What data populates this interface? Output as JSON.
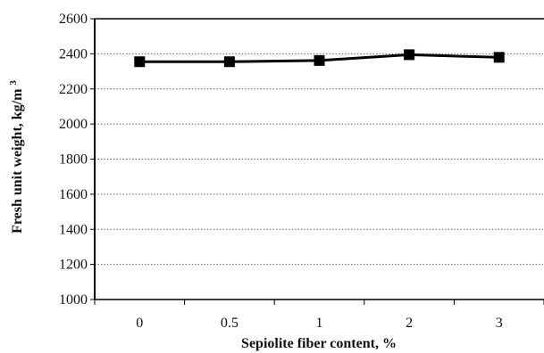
{
  "chart_data": {
    "type": "line",
    "title": "",
    "xlabel": "Sepiolite fiber content, %",
    "ylabel_main": "Fresh unit weight, kg/m",
    "ylabel_superscript": "3",
    "categories": [
      "0",
      "0.5",
      "1",
      "2",
      "3"
    ],
    "series": [
      {
        "values": [
          2355,
          2355,
          2362,
          2395,
          2380
        ]
      }
    ],
    "ylim": [
      1000,
      2600
    ],
    "yticks": [
      1000,
      1200,
      1400,
      1600,
      1800,
      2000,
      2200,
      2400,
      2600
    ],
    "grid": true,
    "legend": "none",
    "marker": "square",
    "colors": {
      "line": "#000000",
      "marker": "#000000",
      "grid": "#666666",
      "axis": "#000000"
    }
  }
}
